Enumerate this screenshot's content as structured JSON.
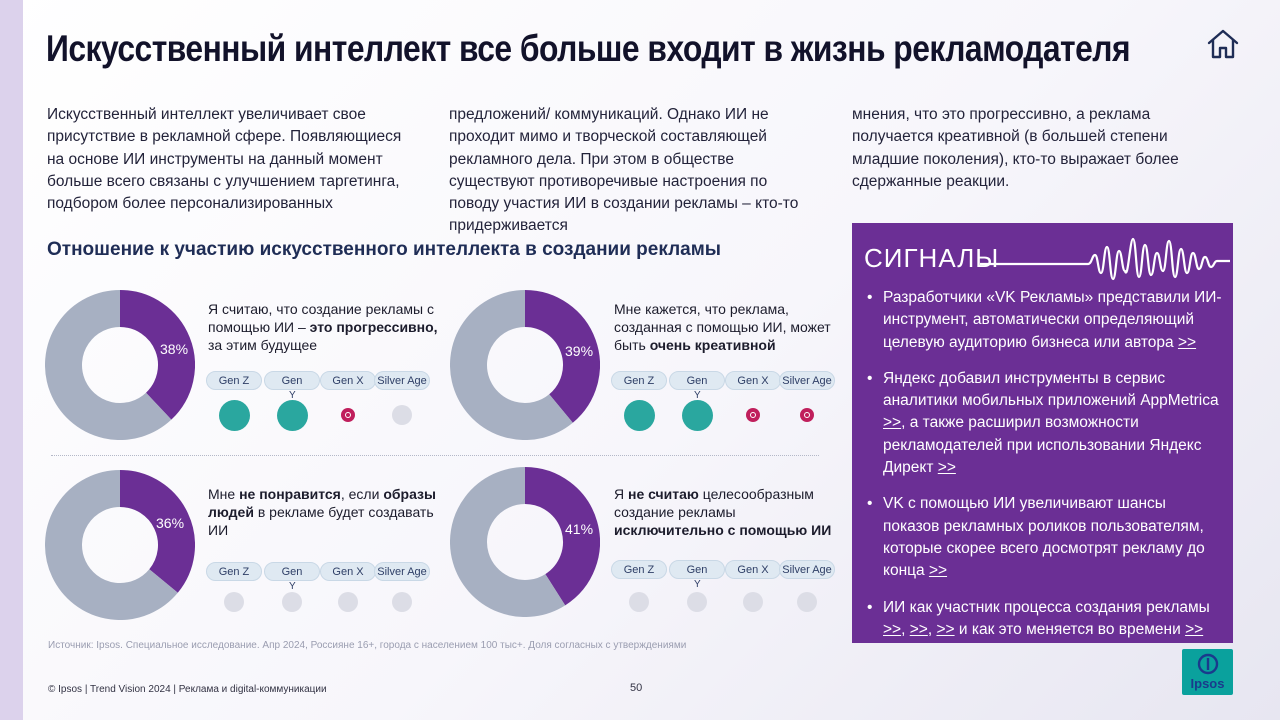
{
  "title": "Искусственный интеллект все больше входит в жизнь рекламодателя",
  "intro": {
    "col1": "Искусственный интеллект увеличивает свое присутствие в рекламной сфере. Появляющиеся на основе ИИ инструменты на данный момент больше всего связаны с улучшением таргетинга, подбором более персонализированных",
    "col2": "предложений/ коммуникаций. Однако ИИ не проходит мимо и творческой составляющей рекламного дела. При этом в обществе существуют противоречивые настроения по поводу участия ИИ в создании рекламы – кто-то придерживается",
    "col3": "мнения, что это прогрессивно, а реклама получается креативной (в большей степени младшие поколения), кто-то выражает более сдержанные реакции."
  },
  "section_heading": "Отношение к участию искусственного интеллекта в создании рекламы",
  "generations": [
    "Gen Z",
    "Gen",
    "Gen X",
    "Silver Age"
  ],
  "gen_y_suffix": "Y",
  "colors": {
    "accent_purple": "#6b2f95",
    "donut_purple": "#6b2f95",
    "donut_grey": "#a7b0c2",
    "teal": "#2aa79f",
    "red": "#c01f5c",
    "neutral_dot": "#dcdde6"
  },
  "chart_data": [
    {
      "type": "pie",
      "percent_label": "38%",
      "values": [
        38,
        62
      ],
      "question_parts": [
        {
          "text": "Я считаю, что создание рекламы с помощью ИИ – ",
          "bold": false
        },
        {
          "text": "это прогрессивно,",
          "bold": true
        },
        {
          "text": " за этим будущее",
          "bold": false
        }
      ],
      "gen_markers": [
        "teal-big",
        "teal-big",
        "red",
        "grey"
      ]
    },
    {
      "type": "pie",
      "percent_label": "39%",
      "values": [
        39,
        61
      ],
      "question_parts": [
        {
          "text": "Мне кажется, что реклама, созданная с помощью ИИ, может быть ",
          "bold": false
        },
        {
          "text": "очень креативной",
          "bold": true
        }
      ],
      "gen_markers": [
        "teal-big",
        "teal-big",
        "red",
        "red"
      ]
    },
    {
      "type": "pie",
      "percent_label": "36%",
      "values": [
        36,
        64
      ],
      "question_parts": [
        {
          "text": "Мне ",
          "bold": false
        },
        {
          "text": "не понравится",
          "bold": true
        },
        {
          "text": ", если ",
          "bold": false
        },
        {
          "text": "образы людей",
          "bold": true
        },
        {
          "text": " в рекламе будет создавать ИИ",
          "bold": false
        }
      ],
      "gen_markers": [
        "grey",
        "grey",
        "grey",
        "grey"
      ]
    },
    {
      "type": "pie",
      "percent_label": "41%",
      "values": [
        41,
        59
      ],
      "question_parts": [
        {
          "text": "Я ",
          "bold": false
        },
        {
          "text": "не считаю",
          "bold": true
        },
        {
          "text": " целесообразным создание рекламы ",
          "bold": false
        },
        {
          "text": "исключительно с помощью ИИ",
          "bold": true
        }
      ],
      "gen_markers": [
        "grey",
        "grey",
        "grey",
        "grey"
      ]
    }
  ],
  "source": "Источник: Ipsos. Специальное исследование. Апр 2024, Россияне 16+, города с населением 100 тыс+. Доля согласных с утверждениями",
  "footer": "© Ipsos | Trend Vision 2024 | Реклама и digital-коммуникации",
  "page_number": "50",
  "signals": {
    "title": "СИГНАЛЫ",
    "items": [
      [
        {
          "text": "Разработчики «VK Рекламы» представили ИИ-инструмент, автоматически определяющий целевую аудиторию бизнеса или автора ",
          "link": false
        },
        {
          "text": ">>",
          "link": true
        }
      ],
      [
        {
          "text": "Яндекс добавил инструменты в сервис аналитики мобильных приложений AppMetrica ",
          "link": false
        },
        {
          "text": ">>",
          "link": true
        },
        {
          "text": ", а также расширил возможности рекламодателей при использовании Яндекс Директ ",
          "link": false
        },
        {
          "text": ">>",
          "link": true
        }
      ],
      [
        {
          "text": "VK с помощью ИИ увеличивают шансы показов рекламных роликов пользователям, которые скорее всего досмотрят рекламу до конца ",
          "link": false
        },
        {
          "text": ">>",
          "link": true
        }
      ],
      [
        {
          "text": "ИИ как участник процесса создания рекламы ",
          "link": false
        },
        {
          "text": ">>",
          "link": true
        },
        {
          "text": ", ",
          "link": false
        },
        {
          "text": ">>",
          "link": true
        },
        {
          "text": ", ",
          "link": false
        },
        {
          "text": ">>",
          "link": true
        },
        {
          "text": " и как это меняется во времени ",
          "link": false
        },
        {
          "text": ">>",
          "link": true
        }
      ]
    ]
  },
  "logo_text": "Ipsos",
  "icons": {
    "home": "home-icon",
    "wave": "soundwave-icon",
    "logo": "ipsos-logo"
  }
}
